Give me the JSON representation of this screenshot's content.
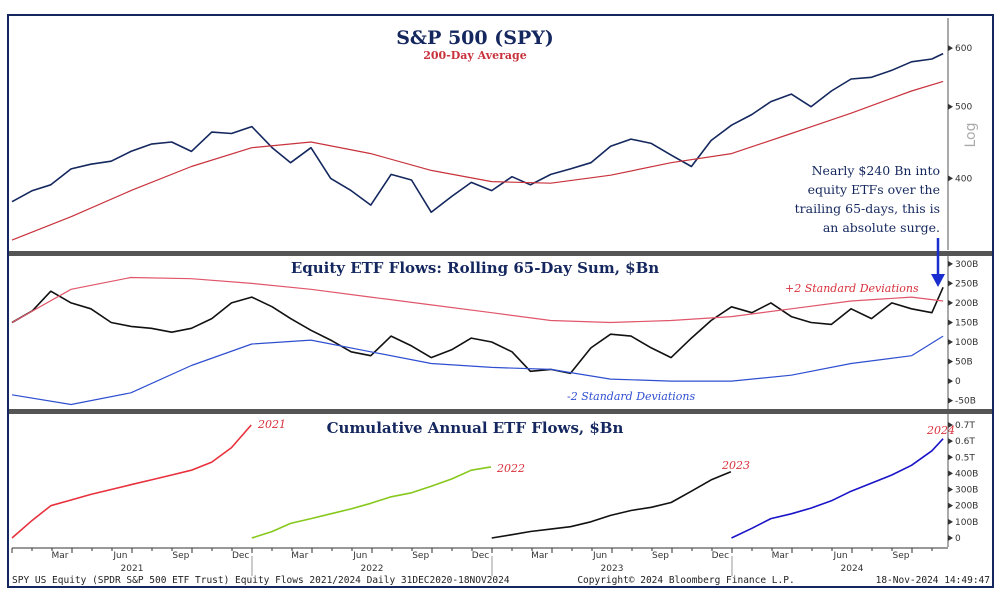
{
  "chart_data": [
    {
      "type": "line",
      "title": "S&P 500 (SPY)",
      "subtitle": "200-Day Average",
      "axis_scale": "log",
      "axis_label": "Log",
      "ylim": [
        320,
        655
      ],
      "yticks": [
        400,
        500,
        600
      ],
      "series": [
        {
          "name": "S&P 500 (SPY)",
          "color": "#14275e",
          "x": [
            "2021-01-01",
            "2021-02-01",
            "2021-03-01",
            "2021-04-01",
            "2021-05-01",
            "2021-06-01",
            "2021-07-01",
            "2021-08-01",
            "2021-09-01",
            "2021-10-01",
            "2021-11-01",
            "2021-12-01",
            "2022-01-01",
            "2022-02-01",
            "2022-03-01",
            "2022-04-01",
            "2022-05-01",
            "2022-06-01",
            "2022-07-01",
            "2022-08-01",
            "2022-09-01",
            "2022-10-01",
            "2022-11-01",
            "2022-12-01",
            "2023-01-01",
            "2023-02-01",
            "2023-03-01",
            "2023-04-01",
            "2023-05-01",
            "2023-06-01",
            "2023-07-01",
            "2023-08-01",
            "2023-09-01",
            "2023-10-01",
            "2023-11-01",
            "2023-12-01",
            "2024-01-01",
            "2024-02-01",
            "2024-03-01",
            "2024-04-01",
            "2024-05-01",
            "2024-06-01",
            "2024-07-01",
            "2024-08-01",
            "2024-09-01",
            "2024-10-01",
            "2024-11-01",
            "2024-11-18"
          ],
          "values": [
            372,
            385,
            392,
            412,
            418,
            422,
            435,
            445,
            448,
            435,
            462,
            460,
            470,
            440,
            420,
            440,
            400,
            385,
            368,
            405,
            398,
            360,
            378,
            395,
            385,
            402,
            392,
            405,
            412,
            420,
            442,
            452,
            446,
            430,
            415,
            450,
            472,
            488,
            508,
            520,
            500,
            525,
            545,
            548,
            560,
            575,
            580,
            590
          ]
        },
        {
          "name": "200-Day Average",
          "color": "#c8323c",
          "x": [
            "2021-01-01",
            "2021-04-01",
            "2021-07-01",
            "2021-10-01",
            "2022-01-01",
            "2022-04-01",
            "2022-07-01",
            "2022-10-01",
            "2023-01-01",
            "2023-04-01",
            "2023-07-01",
            "2023-10-01",
            "2024-01-01",
            "2024-04-01",
            "2024-07-01",
            "2024-10-01",
            "2024-11-18"
          ],
          "values": [
            330,
            355,
            385,
            415,
            440,
            448,
            432,
            410,
            396,
            394,
            404,
            420,
            432,
            460,
            490,
            525,
            541
          ]
        }
      ],
      "annotation": [
        "Nearly $240 Bn into",
        "equity ETFs over the",
        "trailing 65-days, this is",
        "an absolute surge."
      ]
    },
    {
      "type": "line",
      "title": "Equity ETF Flows: Rolling 65-Day Sum, $Bn",
      "ylim": [
        -74,
        315
      ],
      "yticks": [
        "300B",
        "250B",
        "200B",
        "150B",
        "100B",
        "50B",
        "0",
        "-50B"
      ],
      "ytick_values": [
        300,
        250,
        200,
        150,
        100,
        50,
        0,
        -50
      ],
      "series": [
        {
          "name": "",
          "color": "#111111",
          "x": [
            "2021-01-01",
            "2021-02-01",
            "2021-03-01",
            "2021-04-01",
            "2021-05-01",
            "2021-06-01",
            "2021-07-01",
            "2021-08-01",
            "2021-09-01",
            "2021-10-01",
            "2021-11-01",
            "2021-12-01",
            "2022-01-01",
            "2022-02-01",
            "2022-03-01",
            "2022-04-01",
            "2022-05-01",
            "2022-06-01",
            "2022-07-01",
            "2022-08-01",
            "2022-09-01",
            "2022-10-01",
            "2022-11-01",
            "2022-12-01",
            "2023-01-01",
            "2023-02-01",
            "2023-03-01",
            "2023-04-01",
            "2023-05-01",
            "2023-06-01",
            "2023-07-01",
            "2023-08-01",
            "2023-09-01",
            "2023-10-01",
            "2023-11-01",
            "2023-12-01",
            "2024-01-01",
            "2024-02-01",
            "2024-03-01",
            "2024-04-01",
            "2024-05-01",
            "2024-06-01",
            "2024-07-01",
            "2024-08-01",
            "2024-09-01",
            "2024-10-01",
            "2024-11-01",
            "2024-11-18"
          ],
          "values": [
            150,
            180,
            230,
            200,
            185,
            150,
            140,
            135,
            125,
            135,
            160,
            200,
            215,
            190,
            160,
            130,
            105,
            75,
            65,
            115,
            90,
            60,
            80,
            110,
            100,
            75,
            25,
            30,
            20,
            85,
            120,
            115,
            85,
            60,
            110,
            155,
            190,
            175,
            200,
            165,
            150,
            145,
            185,
            160,
            200,
            185,
            175,
            240
          ]
        },
        {
          "name": "+2 Standard Deviations",
          "color": "#e0566a",
          "x": [
            "2021-01-01",
            "2021-04-01",
            "2021-07-01",
            "2021-10-01",
            "2022-01-01",
            "2022-04-01",
            "2022-07-01",
            "2022-10-01",
            "2023-01-01",
            "2023-04-01",
            "2023-07-01",
            "2023-10-01",
            "2024-01-01",
            "2024-04-01",
            "2024-07-01",
            "2024-10-01",
            "2024-11-18"
          ],
          "values": [
            150,
            235,
            265,
            262,
            250,
            235,
            215,
            195,
            175,
            155,
            150,
            155,
            165,
            185,
            205,
            215,
            205
          ]
        },
        {
          "name": "-2 Standard Deviations",
          "color": "#2f4fd0",
          "x": [
            "2021-01-01",
            "2021-04-01",
            "2021-07-01",
            "2021-10-01",
            "2022-01-01",
            "2022-04-01",
            "2022-07-01",
            "2022-10-01",
            "2023-01-01",
            "2023-04-01",
            "2023-07-01",
            "2023-10-01",
            "2024-01-01",
            "2024-04-01",
            "2024-07-01",
            "2024-10-01",
            "2024-11-18"
          ],
          "values": [
            -35,
            -60,
            -30,
            40,
            95,
            105,
            75,
            45,
            35,
            30,
            5,
            0,
            0,
            15,
            45,
            65,
            115
          ]
        }
      ]
    },
    {
      "type": "line",
      "title": "Cumulative Annual ETF Flows, $Bn",
      "ylim": [
        -56,
        768
      ],
      "yticks": [
        "0.7T",
        "0.6T",
        "0.5T",
        "400B",
        "300B",
        "200B",
        "100B",
        "0"
      ],
      "ytick_values": [
        700,
        600,
        500,
        400,
        300,
        200,
        100,
        0
      ],
      "series": [
        {
          "name": "2021",
          "color": "#e8313c",
          "x": [
            "2021-01-01",
            "2021-02-01",
            "2021-03-01",
            "2021-04-01",
            "2021-05-01",
            "2021-06-01",
            "2021-07-01",
            "2021-08-01",
            "2021-09-01",
            "2021-10-01",
            "2021-11-01",
            "2021-12-01",
            "2021-12-31"
          ],
          "values": [
            0,
            110,
            200,
            235,
            270,
            300,
            330,
            360,
            390,
            420,
            470,
            560,
            700
          ]
        },
        {
          "name": "2022",
          "color": "#86c81c",
          "x": [
            "2022-01-01",
            "2022-02-01",
            "2022-03-01",
            "2022-04-01",
            "2022-05-01",
            "2022-06-01",
            "2022-07-01",
            "2022-08-01",
            "2022-09-01",
            "2022-10-01",
            "2022-11-01",
            "2022-12-01",
            "2022-12-31"
          ],
          "values": [
            0,
            40,
            90,
            120,
            150,
            180,
            215,
            255,
            280,
            320,
            365,
            420,
            440
          ]
        },
        {
          "name": "2023",
          "color": "#111111",
          "x": [
            "2023-01-01",
            "2023-02-01",
            "2023-03-01",
            "2023-04-01",
            "2023-05-01",
            "2023-06-01",
            "2023-07-01",
            "2023-08-01",
            "2023-09-01",
            "2023-10-01",
            "2023-11-01",
            "2023-12-01",
            "2023-12-31"
          ],
          "values": [
            0,
            20,
            40,
            55,
            70,
            100,
            140,
            170,
            190,
            220,
            290,
            360,
            410
          ]
        },
        {
          "name": "2024",
          "color": "#1a14c8",
          "x": [
            "2024-01-01",
            "2024-02-01",
            "2024-03-01",
            "2024-04-01",
            "2024-05-01",
            "2024-06-01",
            "2024-07-01",
            "2024-08-01",
            "2024-09-01",
            "2024-10-01",
            "2024-11-01",
            "2024-11-18"
          ],
          "values": [
            0,
            60,
            120,
            150,
            185,
            230,
            290,
            340,
            390,
            450,
            540,
            615
          ]
        }
      ]
    }
  ],
  "x_axis": {
    "months": [
      "Mar",
      "Jun",
      "Sep",
      "Dec",
      "Mar",
      "Jun",
      "Sep",
      "Dec",
      "Mar",
      "Jun",
      "Sep",
      "Dec",
      "Mar",
      "Jun",
      "Sep"
    ],
    "years": [
      "2021",
      "2022",
      "2023",
      "2024"
    ]
  },
  "footer": {
    "left": "SPY US Equity (SPDR S&P 500 ETF Trust) Equity Flows 2021/2024  Daily 31DEC2020-18NOV2024",
    "center": "Copyright© 2024 Bloomberg Finance L.P.",
    "right": "18-Nov-2024 14:49:47"
  }
}
